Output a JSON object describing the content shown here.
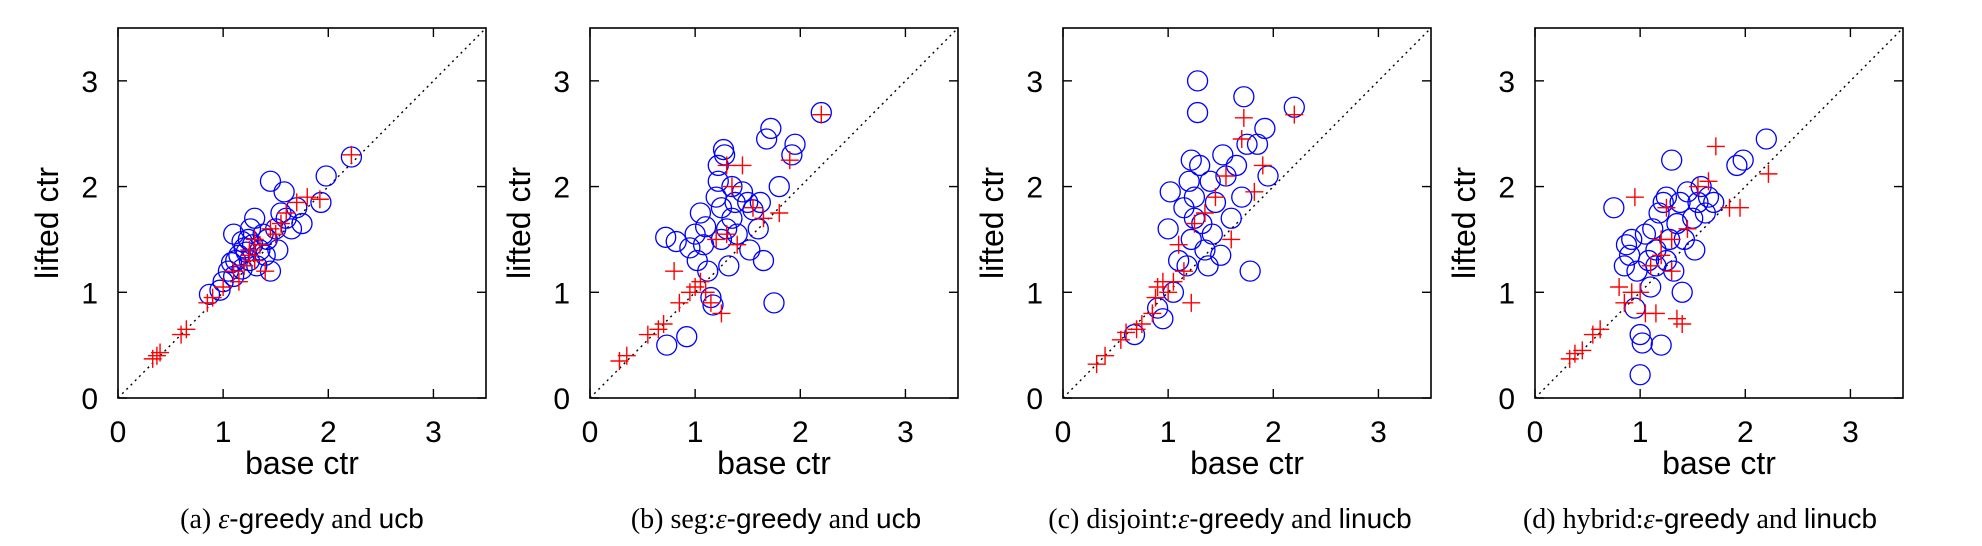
{
  "colors": {
    "circle": "#0000ff",
    "plus": "#ff0000",
    "axis": "#000000",
    "diagonal": "#000000"
  },
  "chart_data": [
    {
      "type": "scatter",
      "xlabel": "base ctr",
      "ylabel": "lifted ctr",
      "xlim": [
        0,
        3.5
      ],
      "ylim": [
        0,
        3.5
      ],
      "xticks": [
        "0",
        "1",
        "2",
        "3"
      ],
      "yticks": [
        "0",
        "1",
        "2",
        "3"
      ],
      "caption": {
        "prefix": "(a) ",
        "epsilon": "ε",
        "middle": "-greedy",
        "serif_join": " and ",
        "algo": "ucb"
      },
      "series": [
        {
          "marker": "circle",
          "points": [
            [
              0.87,
              0.98
            ],
            [
              0.97,
              1.02
            ],
            [
              1.0,
              1.1
            ],
            [
              1.05,
              1.2
            ],
            [
              1.08,
              1.28
            ],
            [
              1.1,
              1.15
            ],
            [
              1.12,
              1.3
            ],
            [
              1.15,
              1.35
            ],
            [
              1.18,
              1.22
            ],
            [
              1.2,
              1.42
            ],
            [
              1.22,
              1.38
            ],
            [
              1.24,
              1.5
            ],
            [
              1.25,
              1.3
            ],
            [
              1.26,
              1.6
            ],
            [
              1.28,
              1.45
            ],
            [
              1.3,
              1.7
            ],
            [
              1.32,
              1.25
            ],
            [
              1.35,
              1.4
            ],
            [
              1.38,
              1.55
            ],
            [
              1.4,
              1.35
            ],
            [
              1.42,
              1.5
            ],
            [
              1.45,
              1.2
            ],
            [
              1.45,
              2.05
            ],
            [
              1.5,
              1.6
            ],
            [
              1.52,
              1.4
            ],
            [
              1.55,
              1.75
            ],
            [
              1.58,
              1.95
            ],
            [
              1.6,
              1.7
            ],
            [
              1.65,
              1.6
            ],
            [
              1.7,
              1.8
            ],
            [
              1.75,
              1.65
            ],
            [
              1.93,
              1.85
            ],
            [
              1.98,
              2.1
            ],
            [
              2.22,
              2.28
            ],
            [
              1.1,
              1.55
            ],
            [
              1.18,
              1.48
            ]
          ]
        },
        {
          "marker": "plus",
          "points": [
            [
              0.33,
              0.37
            ],
            [
              0.37,
              0.4
            ],
            [
              0.4,
              0.43
            ],
            [
              0.6,
              0.6
            ],
            [
              0.65,
              0.65
            ],
            [
              0.85,
              0.9
            ],
            [
              0.9,
              0.95
            ],
            [
              1.0,
              1.05
            ],
            [
              1.1,
              1.2
            ],
            [
              1.15,
              1.1
            ],
            [
              1.2,
              1.25
            ],
            [
              1.25,
              1.35
            ],
            [
              1.3,
              1.5
            ],
            [
              1.35,
              1.45
            ],
            [
              1.4,
              1.2
            ],
            [
              1.45,
              1.6
            ],
            [
              1.5,
              1.55
            ],
            [
              1.55,
              1.65
            ],
            [
              1.6,
              1.75
            ],
            [
              1.7,
              1.85
            ],
            [
              1.8,
              1.9
            ],
            [
              1.92,
              1.88
            ],
            [
              2.22,
              2.3
            ],
            [
              1.25,
              1.4
            ],
            [
              1.3,
              1.3
            ]
          ]
        }
      ]
    },
    {
      "type": "scatter",
      "xlabel": "base ctr",
      "ylabel": "lifted ctr",
      "xlim": [
        0,
        3.5
      ],
      "ylim": [
        0,
        3.5
      ],
      "xticks": [
        "0",
        "1",
        "2",
        "3"
      ],
      "yticks": [
        "0",
        "1",
        "2",
        "3"
      ],
      "caption": {
        "prefix": "(b) seg:",
        "epsilon": "ε",
        "middle": "-greedy",
        "serif_join": " and ",
        "algo": "ucb"
      },
      "series": [
        {
          "marker": "circle",
          "points": [
            [
              0.72,
              1.52
            ],
            [
              0.73,
              0.5
            ],
            [
              0.82,
              1.48
            ],
            [
              0.92,
              0.58
            ],
            [
              0.95,
              1.42
            ],
            [
              1.0,
              1.55
            ],
            [
              1.02,
              1.3
            ],
            [
              1.05,
              1.75
            ],
            [
              1.08,
              1.45
            ],
            [
              1.1,
              1.62
            ],
            [
              1.12,
              1.2
            ],
            [
              1.15,
              0.95
            ],
            [
              1.17,
              0.88
            ],
            [
              1.2,
              1.9
            ],
            [
              1.22,
              2.05
            ],
            [
              1.22,
              2.2
            ],
            [
              1.25,
              1.5
            ],
            [
              1.25,
              1.8
            ],
            [
              1.27,
              2.35
            ],
            [
              1.28,
              2.3
            ],
            [
              1.3,
              1.6
            ],
            [
              1.32,
              1.25
            ],
            [
              1.35,
              1.7
            ],
            [
              1.38,
              1.85
            ],
            [
              1.4,
              1.55
            ],
            [
              1.45,
              1.95
            ],
            [
              1.5,
              1.85
            ],
            [
              1.52,
              1.4
            ],
            [
              1.55,
              1.78
            ],
            [
              1.6,
              1.6
            ],
            [
              1.62,
              1.85
            ],
            [
              1.65,
              1.3
            ],
            [
              1.68,
              2.45
            ],
            [
              1.72,
              2.55
            ],
            [
              1.75,
              0.9
            ],
            [
              1.8,
              2.0
            ],
            [
              1.92,
              2.3
            ],
            [
              1.95,
              2.4
            ],
            [
              2.2,
              2.7
            ],
            [
              1.35,
              2.0
            ]
          ]
        },
        {
          "marker": "plus",
          "points": [
            [
              0.28,
              0.35
            ],
            [
              0.35,
              0.4
            ],
            [
              0.55,
              0.6
            ],
            [
              0.65,
              0.65
            ],
            [
              0.7,
              0.7
            ],
            [
              0.8,
              1.2
            ],
            [
              0.85,
              0.9
            ],
            [
              0.95,
              1.0
            ],
            [
              1.0,
              1.05
            ],
            [
              1.05,
              1.1
            ],
            [
              1.1,
              1.0
            ],
            [
              1.15,
              0.9
            ],
            [
              1.2,
              1.5
            ],
            [
              1.25,
              0.8
            ],
            [
              1.3,
              1.55
            ],
            [
              1.3,
              2.2
            ],
            [
              1.35,
              2.0
            ],
            [
              1.45,
              2.2
            ],
            [
              1.55,
              1.8
            ],
            [
              1.65,
              1.7
            ],
            [
              1.8,
              1.75
            ],
            [
              1.9,
              2.25
            ],
            [
              2.2,
              2.68
            ],
            [
              1.4,
              1.45
            ]
          ]
        }
      ]
    },
    {
      "type": "scatter",
      "xlabel": "base ctr",
      "ylabel": "lifted ctr",
      "xlim": [
        0,
        3.5
      ],
      "ylim": [
        0,
        3.5
      ],
      "xticks": [
        "0",
        "1",
        "2",
        "3"
      ],
      "yticks": [
        "0",
        "1",
        "2",
        "3"
      ],
      "caption": {
        "prefix": "(c) disjoint:",
        "epsilon": "ε",
        "middle": "-greedy",
        "serif_join": " and ",
        "algo": "linucb"
      },
      "series": [
        {
          "marker": "circle",
          "points": [
            [
              0.68,
              0.6
            ],
            [
              0.9,
              0.85
            ],
            [
              0.95,
              0.75
            ],
            [
              1.0,
              1.6
            ],
            [
              1.02,
              1.95
            ],
            [
              1.05,
              1.0
            ],
            [
              1.1,
              1.3
            ],
            [
              1.15,
              1.8
            ],
            [
              1.18,
              1.25
            ],
            [
              1.2,
              2.05
            ],
            [
              1.22,
              2.25
            ],
            [
              1.22,
              1.5
            ],
            [
              1.25,
              1.9
            ],
            [
              1.28,
              3.0
            ],
            [
              1.28,
              2.7
            ],
            [
              1.3,
              2.2
            ],
            [
              1.32,
              1.65
            ],
            [
              1.35,
              1.4
            ],
            [
              1.38,
              1.25
            ],
            [
              1.4,
              2.05
            ],
            [
              1.42,
              1.55
            ],
            [
              1.45,
              1.85
            ],
            [
              1.5,
              1.35
            ],
            [
              1.52,
              2.3
            ],
            [
              1.55,
              2.1
            ],
            [
              1.6,
              1.7
            ],
            [
              1.65,
              2.2
            ],
            [
              1.7,
              1.9
            ],
            [
              1.72,
              2.85
            ],
            [
              1.75,
              2.4
            ],
            [
              1.78,
              1.2
            ],
            [
              1.85,
              2.4
            ],
            [
              1.92,
              2.55
            ],
            [
              1.95,
              2.1
            ],
            [
              2.2,
              2.75
            ],
            [
              1.25,
              1.7
            ]
          ]
        },
        {
          "marker": "plus",
          "points": [
            [
              0.32,
              0.32
            ],
            [
              0.4,
              0.4
            ],
            [
              0.55,
              0.55
            ],
            [
              0.6,
              0.62
            ],
            [
              0.7,
              0.65
            ],
            [
              0.75,
              0.7
            ],
            [
              0.85,
              0.8
            ],
            [
              0.88,
              0.95
            ],
            [
              0.9,
              1.05
            ],
            [
              0.95,
              1.1
            ],
            [
              1.0,
              1.0
            ],
            [
              1.05,
              1.1
            ],
            [
              1.1,
              1.45
            ],
            [
              1.15,
              1.2
            ],
            [
              1.22,
              0.9
            ],
            [
              1.25,
              1.65
            ],
            [
              1.35,
              1.75
            ],
            [
              1.45,
              1.9
            ],
            [
              1.55,
              2.1
            ],
            [
              1.6,
              1.5
            ],
            [
              1.7,
              2.45
            ],
            [
              1.72,
              2.65
            ],
            [
              1.82,
              1.95
            ],
            [
              1.9,
              2.2
            ],
            [
              2.2,
              2.68
            ]
          ]
        }
      ]
    },
    {
      "type": "scatter",
      "xlabel": "base ctr",
      "ylabel": "lifted ctr",
      "xlim": [
        0,
        3.5
      ],
      "ylim": [
        0,
        3.5
      ],
      "xticks": [
        "0",
        "1",
        "2",
        "3"
      ],
      "yticks": [
        "0",
        "1",
        "2",
        "3"
      ],
      "caption": {
        "prefix": "(d) hybrid:",
        "epsilon": "ε",
        "middle": "-greedy",
        "serif_join": " and ",
        "algo": "linucb"
      },
      "series": [
        {
          "marker": "circle",
          "points": [
            [
              0.75,
              1.8
            ],
            [
              0.85,
              1.25
            ],
            [
              0.87,
              1.45
            ],
            [
              0.9,
              1.35
            ],
            [
              0.92,
              1.5
            ],
            [
              0.95,
              0.85
            ],
            [
              0.97,
              1.2
            ],
            [
              1.0,
              0.6
            ],
            [
              1.0,
              0.22
            ],
            [
              1.02,
              0.52
            ],
            [
              1.05,
              1.55
            ],
            [
              1.08,
              1.3
            ],
            [
              1.1,
              1.05
            ],
            [
              1.12,
              1.6
            ],
            [
              1.15,
              1.4
            ],
            [
              1.18,
              1.75
            ],
            [
              1.2,
              0.5
            ],
            [
              1.22,
              1.85
            ],
            [
              1.25,
              1.9
            ],
            [
              1.28,
              1.5
            ],
            [
              1.3,
              2.25
            ],
            [
              1.32,
              1.2
            ],
            [
              1.35,
              1.65
            ],
            [
              1.38,
              1.85
            ],
            [
              1.4,
              1.0
            ],
            [
              1.42,
              1.5
            ],
            [
              1.45,
              1.95
            ],
            [
              1.5,
              1.7
            ],
            [
              1.52,
              1.4
            ],
            [
              1.55,
              1.85
            ],
            [
              1.58,
              2.0
            ],
            [
              1.62,
              1.75
            ],
            [
              1.65,
              1.9
            ],
            [
              1.7,
              1.85
            ],
            [
              1.92,
              2.2
            ],
            [
              1.98,
              2.25
            ],
            [
              2.2,
              2.45
            ],
            [
              1.15,
              1.25
            ],
            [
              1.25,
              1.3
            ]
          ]
        },
        {
          "marker": "plus",
          "points": [
            [
              0.33,
              0.37
            ],
            [
              0.38,
              0.42
            ],
            [
              0.45,
              0.45
            ],
            [
              0.55,
              0.6
            ],
            [
              0.62,
              0.65
            ],
            [
              0.8,
              1.05
            ],
            [
              0.85,
              0.9
            ],
            [
              0.92,
              1.0
            ],
            [
              0.95,
              1.9
            ],
            [
              1.0,
              1.0
            ],
            [
              1.05,
              0.8
            ],
            [
              1.1,
              1.25
            ],
            [
              1.15,
              0.8
            ],
            [
              1.2,
              1.35
            ],
            [
              1.25,
              1.8
            ],
            [
              1.3,
              1.5
            ],
            [
              1.35,
              0.75
            ],
            [
              1.4,
              0.7
            ],
            [
              1.45,
              1.6
            ],
            [
              1.55,
              2.0
            ],
            [
              1.65,
              2.05
            ],
            [
              1.72,
              2.38
            ],
            [
              1.85,
              1.8
            ],
            [
              1.95,
              1.8
            ],
            [
              2.22,
              2.12
            ],
            [
              1.3,
              1.2
            ],
            [
              1.2,
              1.5
            ]
          ]
        }
      ]
    }
  ]
}
